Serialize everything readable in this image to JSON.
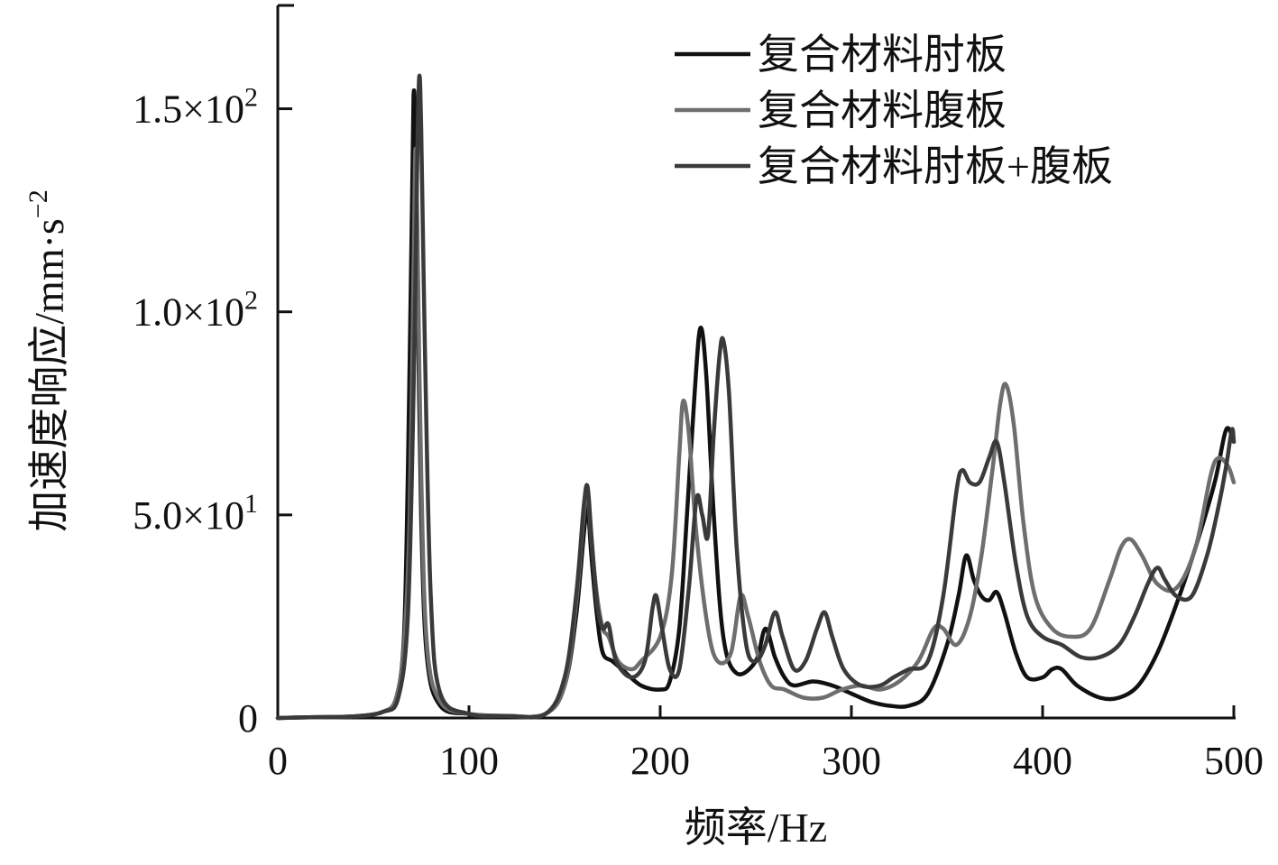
{
  "chart_data": {
    "type": "line",
    "xlabel": "频率/Hz",
    "ylabel": "加速度响应/mm·s",
    "ylabel_sup": "−2",
    "xlim": [
      0,
      500
    ],
    "ylim": [
      0,
      175
    ],
    "grid": false,
    "legend_position": "top-right",
    "x_ticks": [
      {
        "value": 0,
        "label": "0"
      },
      {
        "value": 100,
        "label": "100"
      },
      {
        "value": 200,
        "label": "200"
      },
      {
        "value": 300,
        "label": "300"
      },
      {
        "value": 400,
        "label": "400"
      },
      {
        "value": 500,
        "label": "500"
      }
    ],
    "y_ticks": [
      {
        "value": 0,
        "label": "0",
        "sup": ""
      },
      {
        "value": 50,
        "label": "5.0×10",
        "sup": "1"
      },
      {
        "value": 100,
        "label": "1.0×10",
        "sup": "2"
      },
      {
        "value": 150,
        "label": "1.5×10",
        "sup": "2"
      }
    ],
    "series": [
      {
        "name": "复合材料肘板",
        "color": "#111111",
        "points": [
          [
            0,
            0
          ],
          [
            20,
            0.2
          ],
          [
            40,
            0.4
          ],
          [
            55,
            1.5
          ],
          [
            62,
            5
          ],
          [
            66,
            20
          ],
          [
            68,
            60
          ],
          [
            70,
            120
          ],
          [
            71,
            153
          ],
          [
            72,
            145
          ],
          [
            73,
            110
          ],
          [
            75,
            50
          ],
          [
            78,
            15
          ],
          [
            85,
            3
          ],
          [
            100,
            1
          ],
          [
            120,
            0.5
          ],
          [
            140,
            1
          ],
          [
            150,
            8
          ],
          [
            156,
            25
          ],
          [
            160,
            45
          ],
          [
            162,
            52
          ],
          [
            164,
            40
          ],
          [
            167,
            25
          ],
          [
            170,
            16
          ],
          [
            175,
            14
          ],
          [
            180,
            12
          ],
          [
            190,
            8
          ],
          [
            200,
            7
          ],
          [
            205,
            9
          ],
          [
            210,
            22
          ],
          [
            214,
            50
          ],
          [
            218,
            80
          ],
          [
            221,
            96
          ],
          [
            224,
            85
          ],
          [
            228,
            50
          ],
          [
            233,
            20
          ],
          [
            240,
            11
          ],
          [
            250,
            14
          ],
          [
            255,
            22
          ],
          [
            260,
            15
          ],
          [
            265,
            10
          ],
          [
            270,
            8
          ],
          [
            280,
            9
          ],
          [
            290,
            8
          ],
          [
            300,
            6
          ],
          [
            310,
            4
          ],
          [
            320,
            3
          ],
          [
            330,
            3
          ],
          [
            340,
            6
          ],
          [
            350,
            18
          ],
          [
            356,
            30
          ],
          [
            360,
            40
          ],
          [
            364,
            34
          ],
          [
            368,
            30
          ],
          [
            372,
            29
          ],
          [
            376,
            31
          ],
          [
            380,
            26
          ],
          [
            386,
            16
          ],
          [
            392,
            10
          ],
          [
            400,
            10
          ],
          [
            405,
            12
          ],
          [
            410,
            12
          ],
          [
            418,
            8
          ],
          [
            430,
            5
          ],
          [
            440,
            5
          ],
          [
            450,
            8
          ],
          [
            460,
            16
          ],
          [
            470,
            28
          ],
          [
            480,
            42
          ],
          [
            490,
            58
          ],
          [
            496,
            71
          ],
          [
            500,
            68
          ]
        ]
      },
      {
        "name": "复合材料腹板",
        "color": "#6e6e6e",
        "points": [
          [
            0,
            0
          ],
          [
            20,
            0.2
          ],
          [
            40,
            0.4
          ],
          [
            55,
            1.5
          ],
          [
            62,
            5
          ],
          [
            66,
            18
          ],
          [
            69,
            50
          ],
          [
            71,
            110
          ],
          [
            72,
            140
          ],
          [
            73,
            120
          ],
          [
            75,
            60
          ],
          [
            78,
            18
          ],
          [
            85,
            4
          ],
          [
            100,
            1
          ],
          [
            120,
            0.5
          ],
          [
            140,
            1
          ],
          [
            150,
            8
          ],
          [
            156,
            28
          ],
          [
            160,
            50
          ],
          [
            162,
            56
          ],
          [
            164,
            44
          ],
          [
            167,
            30
          ],
          [
            170,
            22
          ],
          [
            173,
            20
          ],
          [
            178,
            14
          ],
          [
            185,
            12
          ],
          [
            190,
            14
          ],
          [
            200,
            20
          ],
          [
            206,
            35
          ],
          [
            210,
            65
          ],
          [
            212,
            78
          ],
          [
            215,
            70
          ],
          [
            219,
            45
          ],
          [
            225,
            22
          ],
          [
            230,
            14
          ],
          [
            237,
            16
          ],
          [
            242,
            30
          ],
          [
            246,
            25
          ],
          [
            252,
            14
          ],
          [
            258,
            8
          ],
          [
            265,
            7
          ],
          [
            275,
            5
          ],
          [
            285,
            5
          ],
          [
            295,
            7
          ],
          [
            305,
            8
          ],
          [
            315,
            7
          ],
          [
            325,
            9
          ],
          [
            335,
            14
          ],
          [
            343,
            22
          ],
          [
            348,
            22
          ],
          [
            355,
            18
          ],
          [
            362,
            25
          ],
          [
            368,
            40
          ],
          [
            374,
            62
          ],
          [
            378,
            78
          ],
          [
            381,
            82
          ],
          [
            385,
            72
          ],
          [
            390,
            48
          ],
          [
            396,
            30
          ],
          [
            405,
            22
          ],
          [
            415,
            20
          ],
          [
            425,
            22
          ],
          [
            435,
            34
          ],
          [
            441,
            42
          ],
          [
            446,
            44
          ],
          [
            452,
            40
          ],
          [
            460,
            33
          ],
          [
            470,
            32
          ],
          [
            480,
            42
          ],
          [
            488,
            60
          ],
          [
            492,
            64
          ],
          [
            497,
            62
          ],
          [
            500,
            58
          ]
        ]
      },
      {
        "name": "复合材料肘板+腹板",
        "color": "#3a3a3a",
        "points": [
          [
            0,
            0
          ],
          [
            20,
            0.2
          ],
          [
            40,
            0.4
          ],
          [
            55,
            1.5
          ],
          [
            63,
            5
          ],
          [
            68,
            25
          ],
          [
            71,
            80
          ],
          [
            73,
            140
          ],
          [
            74,
            158
          ],
          [
            75,
            145
          ],
          [
            77,
            90
          ],
          [
            80,
            30
          ],
          [
            85,
            6
          ],
          [
            100,
            1
          ],
          [
            120,
            0.5
          ],
          [
            140,
            1
          ],
          [
            150,
            10
          ],
          [
            156,
            30
          ],
          [
            160,
            52
          ],
          [
            162,
            57
          ],
          [
            164,
            45
          ],
          [
            167,
            28
          ],
          [
            170,
            22
          ],
          [
            173,
            23
          ],
          [
            177,
            14
          ],
          [
            185,
            10
          ],
          [
            192,
            14
          ],
          [
            196,
            27
          ],
          [
            198,
            30
          ],
          [
            201,
            22
          ],
          [
            205,
            12
          ],
          [
            210,
            12
          ],
          [
            215,
            32
          ],
          [
            219,
            54
          ],
          [
            222,
            50
          ],
          [
            225,
            45
          ],
          [
            228,
            70
          ],
          [
            231,
            89
          ],
          [
            233,
            93
          ],
          [
            236,
            80
          ],
          [
            240,
            42
          ],
          [
            245,
            18
          ],
          [
            250,
            14
          ],
          [
            255,
            18
          ],
          [
            260,
            26
          ],
          [
            264,
            20
          ],
          [
            270,
            12
          ],
          [
            276,
            14
          ],
          [
            282,
            22
          ],
          [
            286,
            26
          ],
          [
            290,
            20
          ],
          [
            296,
            12
          ],
          [
            305,
            8
          ],
          [
            315,
            8
          ],
          [
            322,
            10
          ],
          [
            330,
            12
          ],
          [
            340,
            14
          ],
          [
            348,
            30
          ],
          [
            355,
            56
          ],
          [
            358,
            61
          ],
          [
            362,
            58
          ],
          [
            367,
            58
          ],
          [
            372,
            64
          ],
          [
            376,
            68
          ],
          [
            380,
            58
          ],
          [
            386,
            38
          ],
          [
            392,
            25
          ],
          [
            400,
            20
          ],
          [
            410,
            18
          ],
          [
            420,
            15
          ],
          [
            430,
            15
          ],
          [
            440,
            18
          ],
          [
            448,
            25
          ],
          [
            455,
            33
          ],
          [
            460,
            37
          ],
          [
            464,
            34
          ],
          [
            470,
            30
          ],
          [
            478,
            30
          ],
          [
            486,
            40
          ],
          [
            492,
            52
          ],
          [
            496,
            62
          ],
          [
            499,
            71
          ],
          [
            500,
            68
          ]
        ]
      }
    ]
  }
}
